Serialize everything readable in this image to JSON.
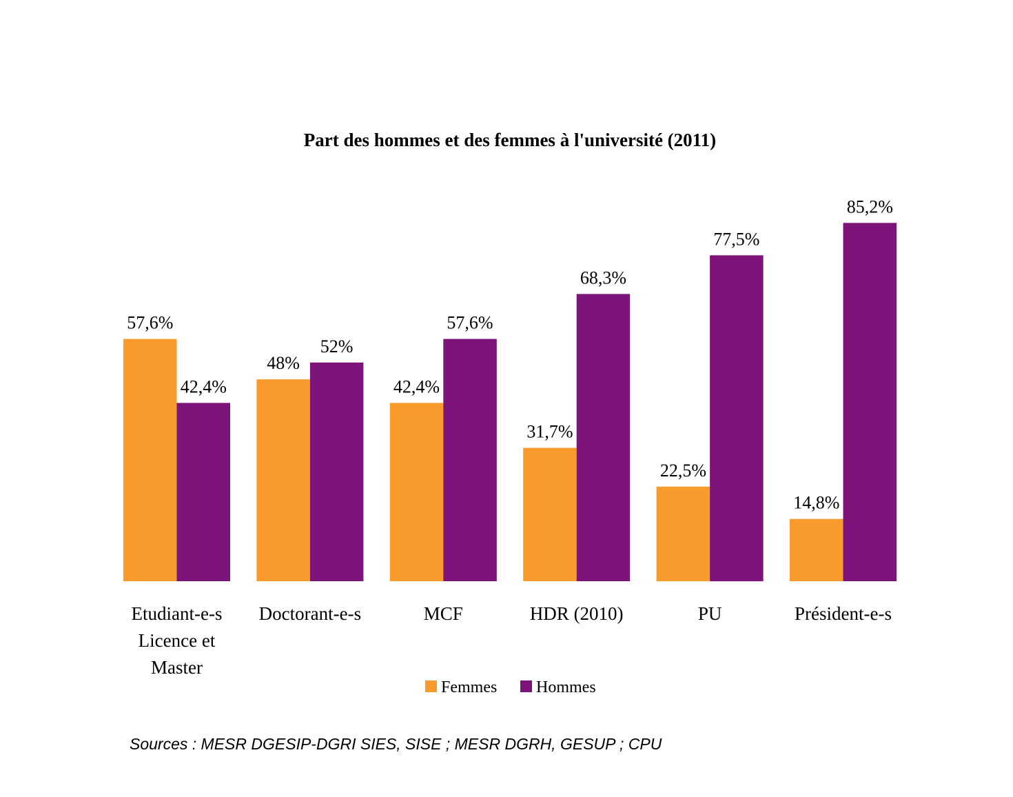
{
  "chart_data": {
    "type": "bar",
    "title": "Part des hommes et des femmes à l'université (2011)",
    "xlabel": "",
    "ylabel": "",
    "ylim": [
      0,
      100
    ],
    "grid": false,
    "legend_position": "bottom",
    "categories": [
      [
        "Etudiant-e-s",
        "Licence et",
        "Master"
      ],
      [
        "Doctorant-e-s"
      ],
      [
        "MCF"
      ],
      [
        "HDR (2010)"
      ],
      [
        "PU"
      ],
      [
        "Président-e-s"
      ]
    ],
    "series": [
      {
        "name": "Femmes",
        "color": "#F99A2C",
        "values": [
          57.6,
          48,
          42.4,
          31.7,
          22.5,
          14.8
        ],
        "labels": [
          "57,6%",
          "48%",
          "42,4%",
          "31,7%",
          "22,5%",
          "14,8%"
        ]
      },
      {
        "name": "Hommes",
        "color": "#7D147A",
        "values": [
          42.4,
          52,
          57.6,
          68.3,
          77.5,
          85.2
        ],
        "labels": [
          "42,4%",
          "52%",
          "57,6%",
          "68,3%",
          "77,5%",
          "85,2%"
        ]
      }
    ]
  },
  "source_note": "Sources : MESR DGESIP-DGRI SIES, SISE ; MESR DGRH, GESUP ; CPU"
}
